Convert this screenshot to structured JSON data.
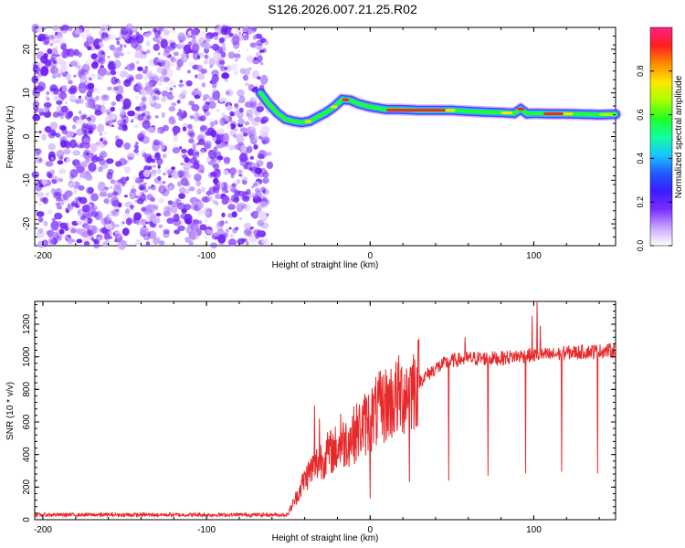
{
  "title": "S126.2026.007.21.25.R02",
  "colors": {
    "snr_line": "#e8282a",
    "scatter_purple": "#7a2cff",
    "axis": "#000000",
    "colorbar": [
      "#ffffff",
      "#c9a4ff",
      "#7a2cff",
      "#3b1cff",
      "#1f5bff",
      "#17c8ff",
      "#11ff9e",
      "#22ff22",
      "#aaff00",
      "#ffe600",
      "#ff8a00",
      "#ff2020",
      "#ff1f8b"
    ]
  },
  "chart_data": [
    {
      "type": "heatmap",
      "name": "spectrogram",
      "xlabel": "Height of straight line (km)",
      "ylabel": "Frequency (Hz)",
      "xlim": [
        -205,
        150
      ],
      "ylim": [
        -25,
        25
      ],
      "xticks": [
        -200,
        -100,
        0,
        100
      ],
      "yticks": [
        -20,
        -10,
        0,
        10,
        20
      ],
      "noise_region_x": [
        -205,
        -63
      ],
      "ridge": {
        "x": [
          -67,
          -62,
          -57,
          -52,
          -47,
          -42,
          -37,
          -32,
          -27,
          -22,
          -17,
          -12,
          -7,
          0,
          10,
          20,
          30,
          40,
          50,
          60,
          70,
          80,
          88,
          92,
          96,
          100,
          110,
          120,
          130,
          140,
          150
        ],
        "freq": [
          10,
          7.5,
          5.5,
          4,
          3.5,
          3.2,
          3.5,
          4.5,
          5.5,
          6.8,
          8.5,
          8.3,
          7.5,
          6.8,
          6.2,
          6.2,
          6,
          6,
          6,
          5.8,
          5.6,
          5.5,
          5.3,
          6.3,
          5.2,
          5.3,
          5.2,
          5.2,
          5.1,
          5,
          5.1
        ]
      },
      "colorbar": {
        "label": "Normalized spectral amplitude",
        "range": [
          0,
          1
        ],
        "ticks": [
          "0.0",
          "0.2",
          "0.4",
          "0.6",
          "0.8"
        ]
      }
    },
    {
      "type": "line",
      "name": "snr",
      "xlabel": "Height of straight line (km)",
      "ylabel": "SNR (10 * v/v)",
      "xlim": [
        -205,
        150
      ],
      "ylim": [
        0,
        1340
      ],
      "xticks": [
        -200,
        -100,
        0,
        100
      ],
      "yticks": [
        0,
        200,
        400,
        600,
        800,
        1000,
        1200
      ],
      "baseline_segment": {
        "x": [
          -205,
          -50
        ],
        "level": 30
      },
      "envelope": {
        "x": [
          -50,
          -45,
          -40,
          -35,
          -30,
          -25,
          -20,
          -15,
          -10,
          -5,
          0,
          5,
          10,
          15,
          20,
          25,
          30,
          35,
          40,
          45,
          50,
          60,
          70,
          80,
          90,
          100,
          110,
          120,
          130,
          140,
          150
        ],
        "y": [
          40,
          140,
          250,
          320,
          370,
          410,
          440,
          480,
          520,
          570,
          620,
          670,
          710,
          740,
          770,
          810,
          850,
          890,
          930,
          955,
          975,
          990,
          990,
          990,
          1005,
          1010,
          1010,
          1025,
          1030,
          1035,
          1040
        ]
      },
      "spikes_down": [
        {
          "x": 0,
          "y": 130
        },
        {
          "x": 24,
          "y": 230
        },
        {
          "x": 48,
          "y": 240
        },
        {
          "x": 72,
          "y": 270
        },
        {
          "x": 95,
          "y": 285
        },
        {
          "x": 117,
          "y": 295
        },
        {
          "x": 139,
          "y": 285
        }
      ],
      "spikes_up": [
        {
          "x": -34,
          "y": 700
        },
        {
          "x": -31,
          "y": 620
        },
        {
          "x": -18,
          "y": 650
        },
        {
          "x": 58,
          "y": 1120
        },
        {
          "x": 99,
          "y": 1250
        },
        {
          "x": 102,
          "y": 1340
        },
        {
          "x": 104,
          "y": 1190
        }
      ]
    }
  ]
}
